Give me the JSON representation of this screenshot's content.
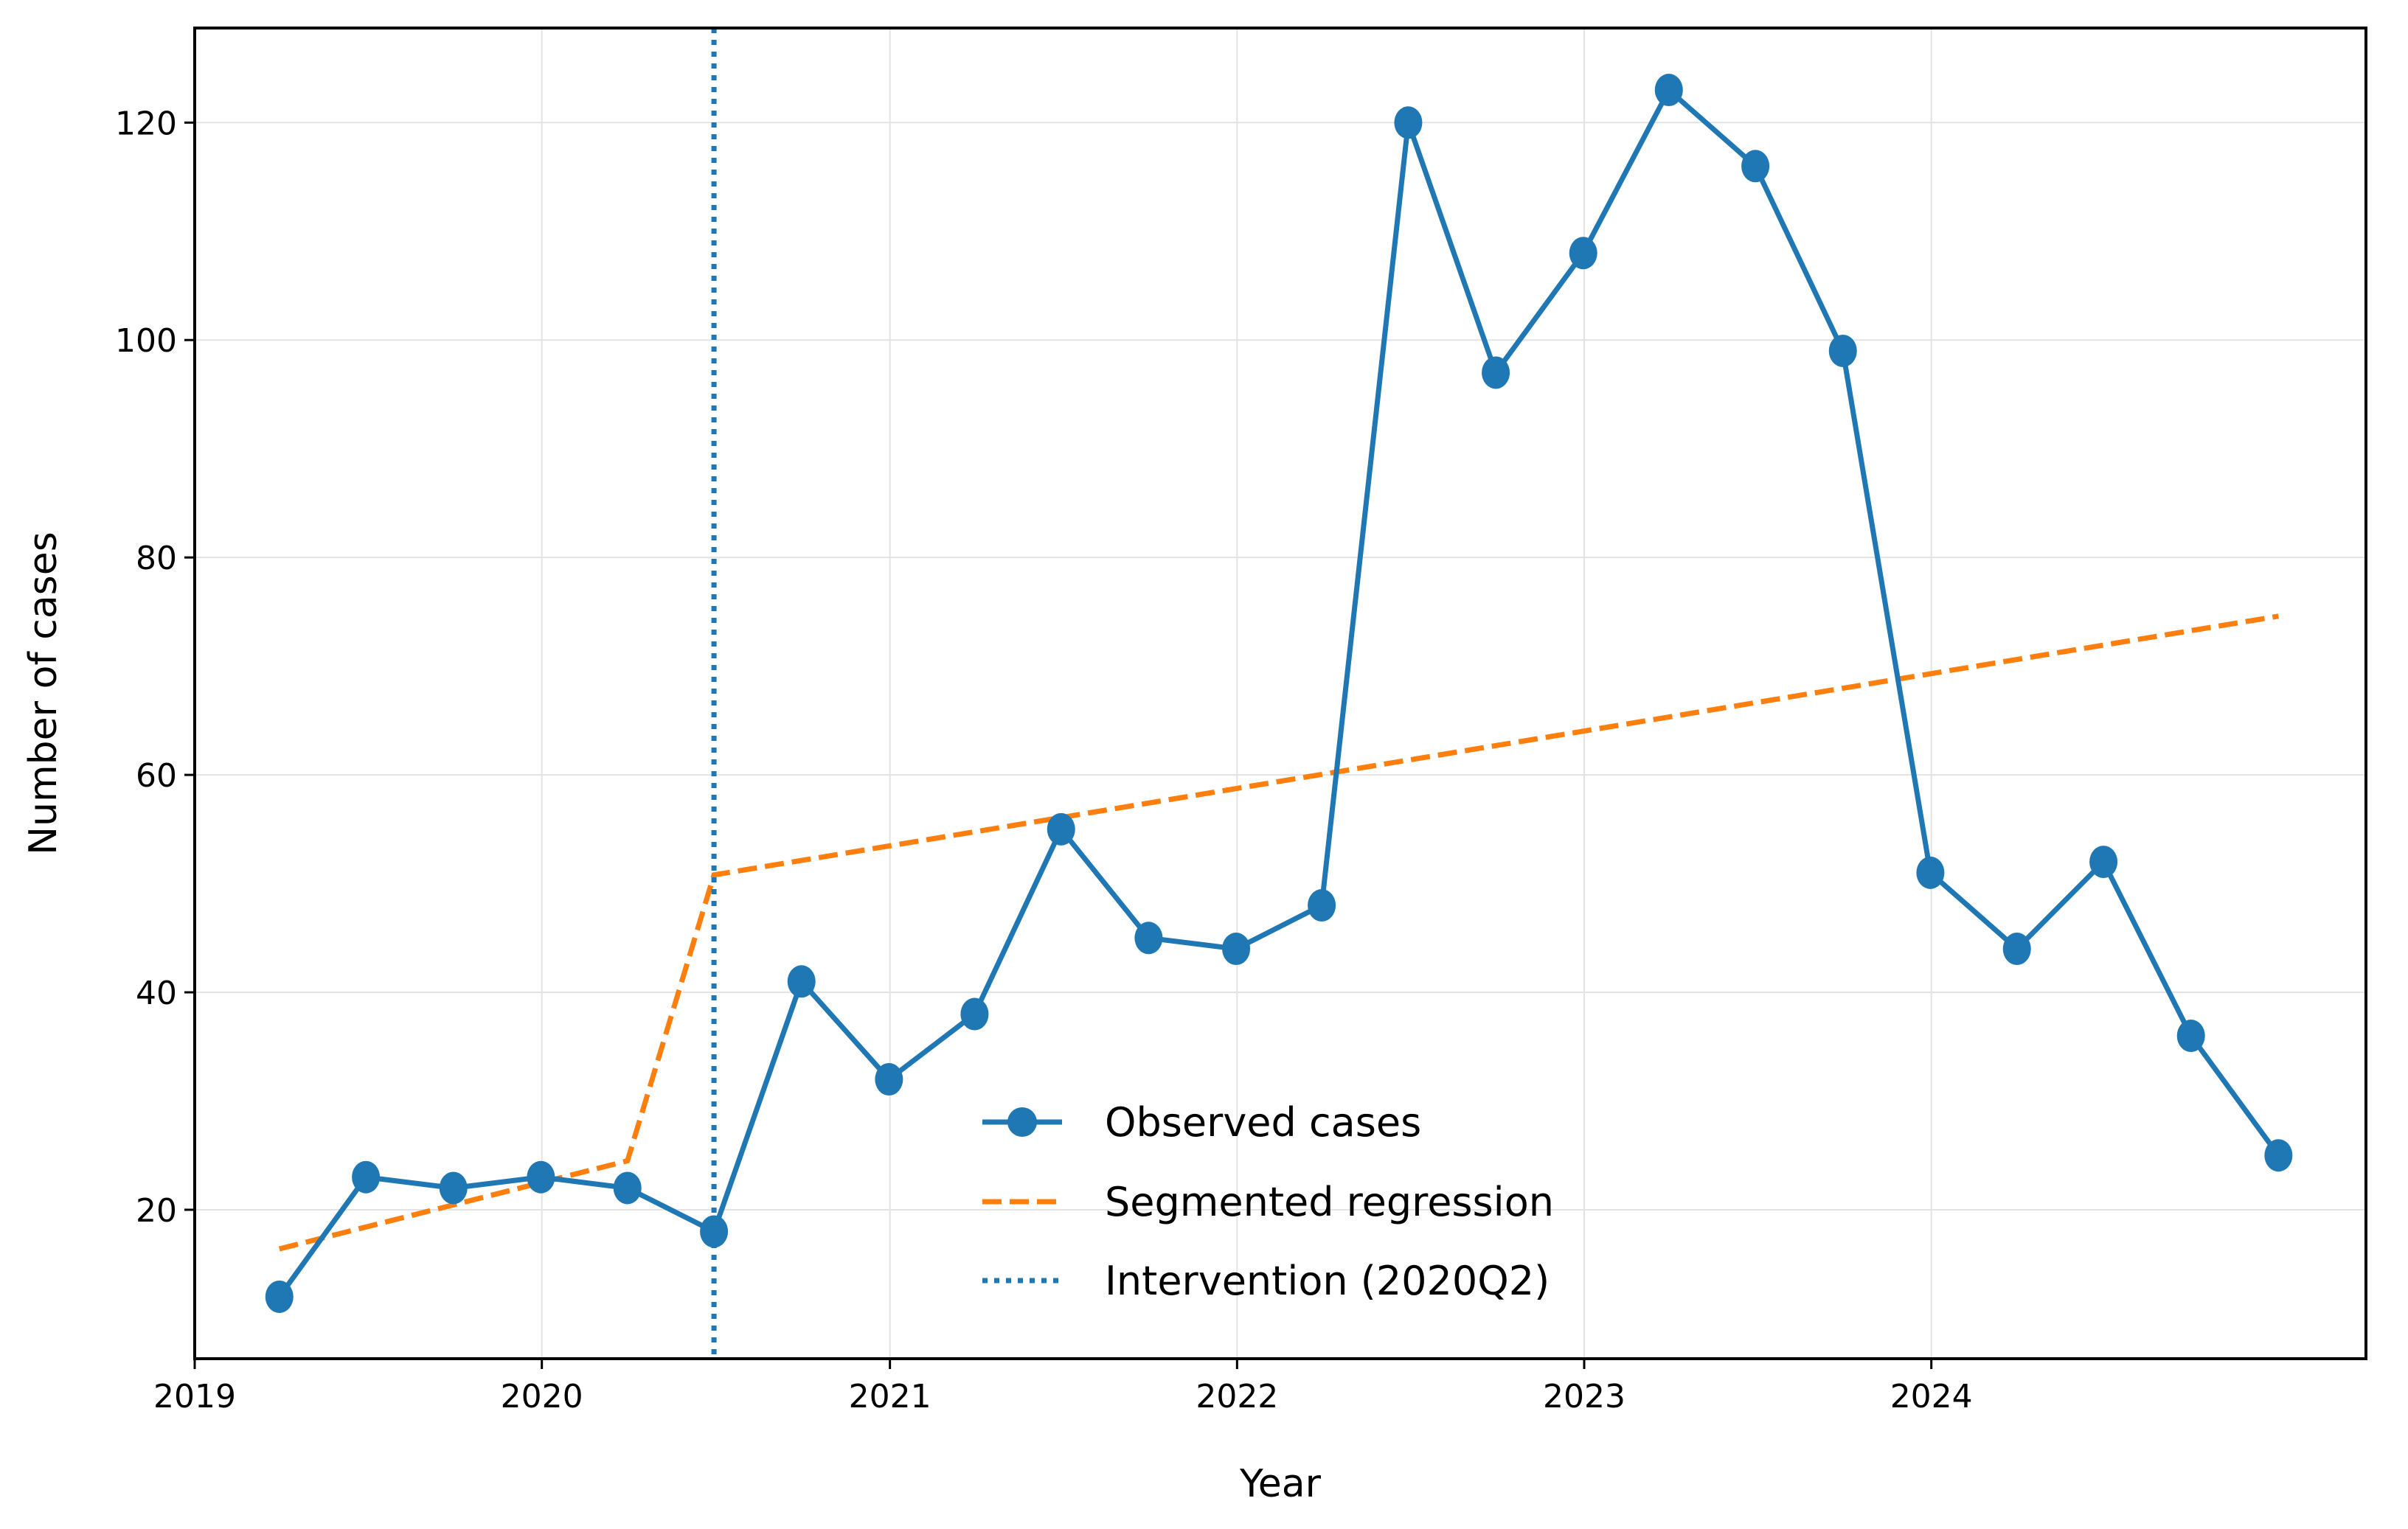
{
  "chart_data": {
    "type": "line",
    "title": "",
    "xlabel": "Year",
    "ylabel": "Number of cases",
    "xlim": [
      "2019-01-01",
      "2025-04-02"
    ],
    "ylim": [
      6.3,
      128.7
    ],
    "x_ticks": [
      {
        "date": "2019-01-01",
        "label": "2019"
      },
      {
        "date": "2020-01-01",
        "label": "2020"
      },
      {
        "date": "2021-01-01",
        "label": "2021"
      },
      {
        "date": "2022-01-01",
        "label": "2022"
      },
      {
        "date": "2023-01-01",
        "label": "2023"
      },
      {
        "date": "2024-01-01",
        "label": "2024"
      }
    ],
    "y_ticks": [
      20,
      40,
      60,
      80,
      100,
      120
    ],
    "grid": true,
    "legend_position": "lower-center",
    "series": [
      {
        "name": "Observed cases",
        "style": "solid-line-with-circle-markers",
        "color": "#1f77b4",
        "points": [
          {
            "x": "2019-03-31",
            "y": 12
          },
          {
            "x": "2019-06-30",
            "y": 23
          },
          {
            "x": "2019-09-30",
            "y": 22
          },
          {
            "x": "2019-12-31",
            "y": 23
          },
          {
            "x": "2020-03-31",
            "y": 22
          },
          {
            "x": "2020-06-30",
            "y": 18
          },
          {
            "x": "2020-09-30",
            "y": 41
          },
          {
            "x": "2020-12-31",
            "y": 32
          },
          {
            "x": "2021-03-31",
            "y": 38
          },
          {
            "x": "2021-06-30",
            "y": 55
          },
          {
            "x": "2021-09-30",
            "y": 45
          },
          {
            "x": "2021-12-31",
            "y": 44
          },
          {
            "x": "2022-03-31",
            "y": 48
          },
          {
            "x": "2022-06-30",
            "y": 120
          },
          {
            "x": "2022-09-30",
            "y": 97
          },
          {
            "x": "2022-12-31",
            "y": 108
          },
          {
            "x": "2023-03-31",
            "y": 123
          },
          {
            "x": "2023-06-30",
            "y": 116
          },
          {
            "x": "2023-09-30",
            "y": 99
          },
          {
            "x": "2023-12-31",
            "y": 51
          },
          {
            "x": "2024-03-31",
            "y": 44
          },
          {
            "x": "2024-06-30",
            "y": 52
          },
          {
            "x": "2024-09-30",
            "y": 36
          },
          {
            "x": "2024-12-31",
            "y": 25
          }
        ]
      },
      {
        "name": "Segmented regression",
        "style": "dashed-line",
        "color": "#ff7f0e",
        "points": [
          {
            "x": "2019-03-31",
            "y": 16.4
          },
          {
            "x": "2020-03-31",
            "y": 24.5
          },
          {
            "x": "2020-06-30",
            "y": 50.8
          },
          {
            "x": "2024-12-31",
            "y": 74.6
          }
        ]
      }
    ],
    "vertical_lines": [
      {
        "name": "Intervention (2020Q2)",
        "x": "2020-06-30",
        "style": "dotted-line",
        "color": "#1f77b4"
      }
    ]
  }
}
